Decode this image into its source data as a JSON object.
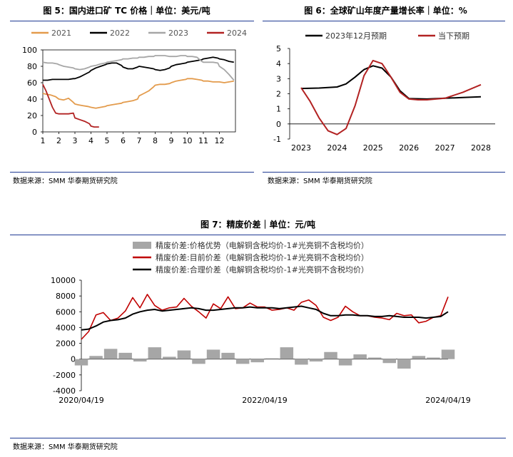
{
  "chart1": {
    "title": "图 5：国内进口矿 TC 价格｜单位：美元/吨",
    "source": "数据来源：SMM 华泰期货研究院",
    "chart_data": {
      "type": "line",
      "x_ticks": [
        "1",
        "2",
        "3",
        "4",
        "5",
        "6",
        "7",
        "8",
        "9",
        "10",
        "11",
        "12"
      ],
      "y_ticks": [
        "0",
        "20",
        "40",
        "60",
        "80",
        "100"
      ],
      "ylim": [
        0,
        100
      ],
      "xlim": [
        1,
        13
      ],
      "legend_position": "top",
      "series": [
        {
          "name": "2021",
          "color": "#e39b4c",
          "x": [
            1,
            1.2,
            1.5,
            1.8,
            2,
            2.3,
            2.6,
            2.9,
            3,
            3.2,
            3.5,
            3.8,
            4,
            4.3,
            4.6,
            4.9,
            5,
            5.3,
            5.6,
            5.9,
            6,
            6.3,
            6.6,
            6.9,
            7,
            7.3,
            7.6,
            7.9,
            8,
            8.3,
            8.6,
            8.9,
            9,
            9.3,
            9.6,
            9.9,
            10,
            10.3,
            10.6,
            10.9,
            11,
            11.3,
            11.6,
            11.9,
            12,
            12.3,
            12.6,
            12.9
          ],
          "y": [
            47,
            46,
            45,
            43,
            40,
            39,
            41,
            36,
            34,
            33,
            32,
            31,
            30,
            29,
            30,
            31,
            32,
            33,
            34,
            35,
            36,
            37,
            38,
            40,
            44,
            47,
            50,
            55,
            57,
            58,
            58,
            59,
            60,
            62,
            63,
            64,
            65,
            65,
            64,
            63,
            62,
            62,
            61,
            61,
            61,
            60,
            61,
            62
          ]
        },
        {
          "name": "2022",
          "color": "#000000",
          "x": [
            1,
            1.3,
            1.6,
            1.9,
            2,
            2.3,
            2.6,
            2.9,
            3,
            3.3,
            3.6,
            3.9,
            4,
            4.3,
            4.6,
            4.9,
            5,
            5.3,
            5.6,
            5.9,
            6,
            6.3,
            6.6,
            6.9,
            7,
            7.3,
            7.6,
            7.9,
            8,
            8.3,
            8.6,
            8.9,
            9,
            9.3,
            9.6,
            9.9,
            10,
            10.3,
            10.6,
            10.9,
            11,
            11.3,
            11.6,
            11.9,
            12,
            12.3,
            12.6,
            12.9
          ],
          "y": [
            63,
            63,
            64,
            64,
            64,
            64,
            64,
            65,
            65,
            67,
            70,
            73,
            75,
            78,
            80,
            82,
            83,
            84,
            84,
            81,
            79,
            77,
            77,
            79,
            80,
            79,
            78,
            77,
            76,
            75,
            76,
            78,
            80,
            82,
            83,
            84,
            85,
            86,
            87,
            88,
            89,
            90,
            91,
            90,
            89,
            88,
            86,
            85
          ]
        },
        {
          "name": "2023",
          "color": "#a6a6a6",
          "x": [
            1,
            1.3,
            1.6,
            1.9,
            2,
            2.3,
            2.6,
            2.9,
            3,
            3.3,
            3.6,
            3.9,
            4,
            4.3,
            4.6,
            4.9,
            5,
            5.3,
            5.6,
            5.9,
            6,
            6.3,
            6.6,
            6.9,
            7,
            7.3,
            7.6,
            7.9,
            8,
            8.3,
            8.6,
            8.9,
            9,
            9.3,
            9.6,
            9.9,
            10,
            10.3,
            10.6,
            10.9,
            11,
            11.3,
            11.6,
            11.9,
            12,
            12.3,
            12.6,
            12.9
          ],
          "y": [
            85,
            84,
            84,
            83,
            82,
            80,
            79,
            78,
            77,
            76,
            77,
            79,
            80,
            81,
            83,
            84,
            85,
            86,
            87,
            88,
            89,
            89,
            90,
            90,
            91,
            91,
            92,
            92,
            93,
            93,
            93,
            92,
            92,
            92,
            93,
            93,
            92,
            92,
            91,
            86,
            85,
            85,
            85,
            84,
            80,
            76,
            70,
            63
          ]
        },
        {
          "name": "2024",
          "color": "#b22222",
          "x": [
            1,
            1.2,
            1.4,
            1.6,
            1.8,
            2,
            2.3,
            2.6,
            2.9,
            3,
            3.3,
            3.6,
            3.9,
            4,
            4.2,
            4.5
          ],
          "y": [
            58,
            50,
            40,
            30,
            23,
            22,
            22,
            22,
            23,
            17,
            15,
            13,
            10,
            7,
            6,
            6
          ]
        }
      ]
    }
  },
  "chart2": {
    "title": "图 6：全球矿山年度产量增长率｜单位：%",
    "source": "数据来源：SMM 华泰期货研究院",
    "chart_data": {
      "type": "line",
      "x_ticks": [
        "2023",
        "2024",
        "2025",
        "2026",
        "2027",
        "2028"
      ],
      "y_ticks": [
        "-1",
        "0",
        "1",
        "2",
        "3",
        "4",
        "5"
      ],
      "ylim": [
        -1,
        5
      ],
      "legend_position": "top",
      "series": [
        {
          "name": "2023年12月预期",
          "color": "#000000",
          "x": [
            2023,
            2023.5,
            2024,
            2024.25,
            2024.5,
            2024.75,
            2025,
            2025.25,
            2025.5,
            2025.75,
            2026,
            2026.5,
            2027,
            2027.5,
            2028
          ],
          "y": [
            2.35,
            2.38,
            2.45,
            2.65,
            3.1,
            3.6,
            3.85,
            3.7,
            3.1,
            2.2,
            1.68,
            1.65,
            1.7,
            1.75,
            1.8
          ]
        },
        {
          "name": "当下预期",
          "color": "#b22222",
          "x": [
            2023,
            2023.25,
            2023.5,
            2023.75,
            2024,
            2024.25,
            2024.5,
            2024.75,
            2025,
            2025.25,
            2025.5,
            2025.75,
            2026,
            2026.25,
            2026.5,
            2027,
            2027.5,
            2028
          ],
          "y": [
            2.4,
            1.5,
            0.4,
            -0.45,
            -0.7,
            -0.3,
            1.2,
            3.2,
            4.2,
            4.0,
            3.1,
            2.1,
            1.65,
            1.6,
            1.6,
            1.7,
            2.1,
            2.6
          ]
        }
      ]
    }
  },
  "chart3": {
    "title": "图 7：精废价差｜单位：元/吨",
    "source": "数据来源：SMM 华泰期货研究院",
    "chart_data": {
      "type": "line",
      "x_ticks": [
        "2020/04/19",
        "2022/04/19",
        "2024/04/19"
      ],
      "y_ticks": [
        "-4000",
        "-2000",
        "0",
        "2000",
        "4000",
        "6000",
        "8000",
        "10000"
      ],
      "ylim": [
        -4000,
        10000
      ],
      "legend_position": "top",
      "series": [
        {
          "name": "精废价差:价格优势（电解铜含税均价-1#光亮铜不含税均价）",
          "color": "#a6a6a6",
          "kind": "bar",
          "x": [
            0,
            2,
            4,
            6,
            8,
            10,
            12,
            14,
            16,
            18,
            20,
            22,
            24,
            26,
            28,
            30,
            32,
            34,
            36,
            38,
            40,
            42,
            44,
            46,
            48,
            50
          ],
          "y": [
            -800,
            400,
            1300,
            800,
            -300,
            1500,
            300,
            1100,
            -600,
            1200,
            800,
            -600,
            -400,
            100,
            1500,
            -700,
            -300,
            900,
            -800,
            600,
            200,
            -500,
            -1200,
            400,
            200,
            1200
          ]
        },
        {
          "name": "精废价差:目前价差（电解铜含税均价-1#光亮铜不含税均价）",
          "color": "#c00000",
          "kind": "line",
          "x": [
            0,
            1,
            2,
            3,
            4,
            5,
            6,
            7,
            8,
            9,
            10,
            11,
            12,
            13,
            14,
            15,
            16,
            17,
            18,
            19,
            20,
            21,
            22,
            23,
            24,
            25,
            26,
            27,
            28,
            29,
            30,
            31,
            32,
            33,
            34,
            35,
            36,
            37,
            38,
            39,
            40,
            41,
            42,
            43,
            44,
            45,
            46,
            47,
            48,
            49,
            50
          ],
          "y": [
            2500,
            3500,
            5600,
            5900,
            4900,
            5200,
            6100,
            7800,
            6500,
            8200,
            6800,
            6200,
            6500,
            6600,
            7700,
            6700,
            6000,
            5200,
            7000,
            6400,
            7900,
            6400,
            6500,
            7100,
            6600,
            6600,
            6200,
            6300,
            6500,
            6200,
            7200,
            7500,
            6800,
            5300,
            4900,
            5300,
            6700,
            6000,
            5500,
            5500,
            5300,
            5200,
            5000,
            5800,
            5500,
            5600,
            4600,
            4800,
            5300,
            5500,
            7900
          ]
        },
        {
          "name": "精废价差:合理价差（电解铜含税均价-1#光亮铜不含税均价）",
          "color": "#000000",
          "kind": "line",
          "x": [
            0,
            1,
            2,
            3,
            4,
            5,
            6,
            7,
            8,
            9,
            10,
            11,
            12,
            13,
            14,
            15,
            16,
            17,
            18,
            19,
            20,
            21,
            22,
            23,
            24,
            25,
            26,
            27,
            28,
            29,
            30,
            31,
            32,
            33,
            34,
            35,
            36,
            37,
            38,
            39,
            40,
            41,
            42,
            43,
            44,
            45,
            46,
            47,
            48,
            49,
            50
          ],
          "y": [
            3700,
            3800,
            4200,
            4700,
            4900,
            5000,
            5200,
            5700,
            6000,
            6200,
            6300,
            6100,
            6200,
            6300,
            6400,
            6500,
            6400,
            6200,
            6200,
            6300,
            6400,
            6500,
            6500,
            6600,
            6500,
            6500,
            6500,
            6400,
            6500,
            6600,
            6700,
            6500,
            6300,
            5800,
            5500,
            5500,
            5600,
            5600,
            5500,
            5500,
            5400,
            5400,
            5500,
            5400,
            5300,
            5300,
            5300,
            5200,
            5300,
            5400,
            6000
          ]
        }
      ]
    }
  }
}
